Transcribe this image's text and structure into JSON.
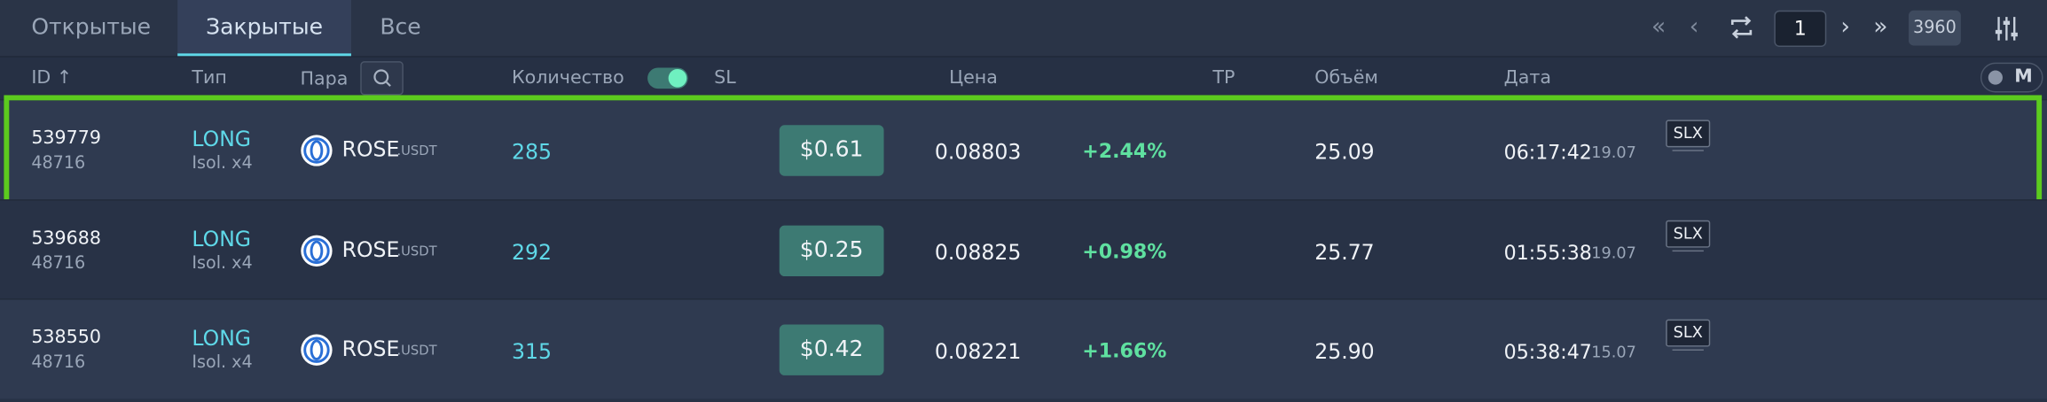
{
  "tabs": [
    "Открытые",
    "Закрытые",
    "Все"
  ],
  "pagination": {
    "page": "1",
    "total": "3960"
  },
  "columns": {
    "id": "ID ↑",
    "type": "Тип",
    "pair": "Пара",
    "quantity": "Количество",
    "sl": "SL",
    "price": "Цена",
    "tp": "TP",
    "volume": "Объём",
    "date": "Дата",
    "mode": "M"
  },
  "rows": [
    {
      "id": "539779",
      "sub_id": "48716",
      "side": "LONG",
      "margin": "Isol. x4",
      "base": "ROSE",
      "quote": ".USDT",
      "quantity": "285",
      "sl": "$0.61",
      "price": "0.08803",
      "change": "+2.44%",
      "volume": "25.09",
      "time": "06:17:42",
      "date": "19.07",
      "exchange": "SLX"
    },
    {
      "id": "539688",
      "sub_id": "48716",
      "side": "LONG",
      "margin": "Isol. x4",
      "base": "ROSE",
      "quote": ".USDT",
      "quantity": "292",
      "sl": "$0.25",
      "price": "0.08825",
      "change": "+0.98%",
      "volume": "25.77",
      "time": "01:55:38",
      "date": "19.07",
      "exchange": "SLX"
    },
    {
      "id": "538550",
      "sub_id": "48716",
      "side": "LONG",
      "margin": "Isol. x4",
      "base": "ROSE",
      "quote": ".USDT",
      "quantity": "315",
      "sl": "$0.42",
      "price": "0.08221",
      "change": "+1.66%",
      "volume": "25.90",
      "time": "05:38:47",
      "date": "15.07",
      "exchange": "SLX"
    }
  ]
}
